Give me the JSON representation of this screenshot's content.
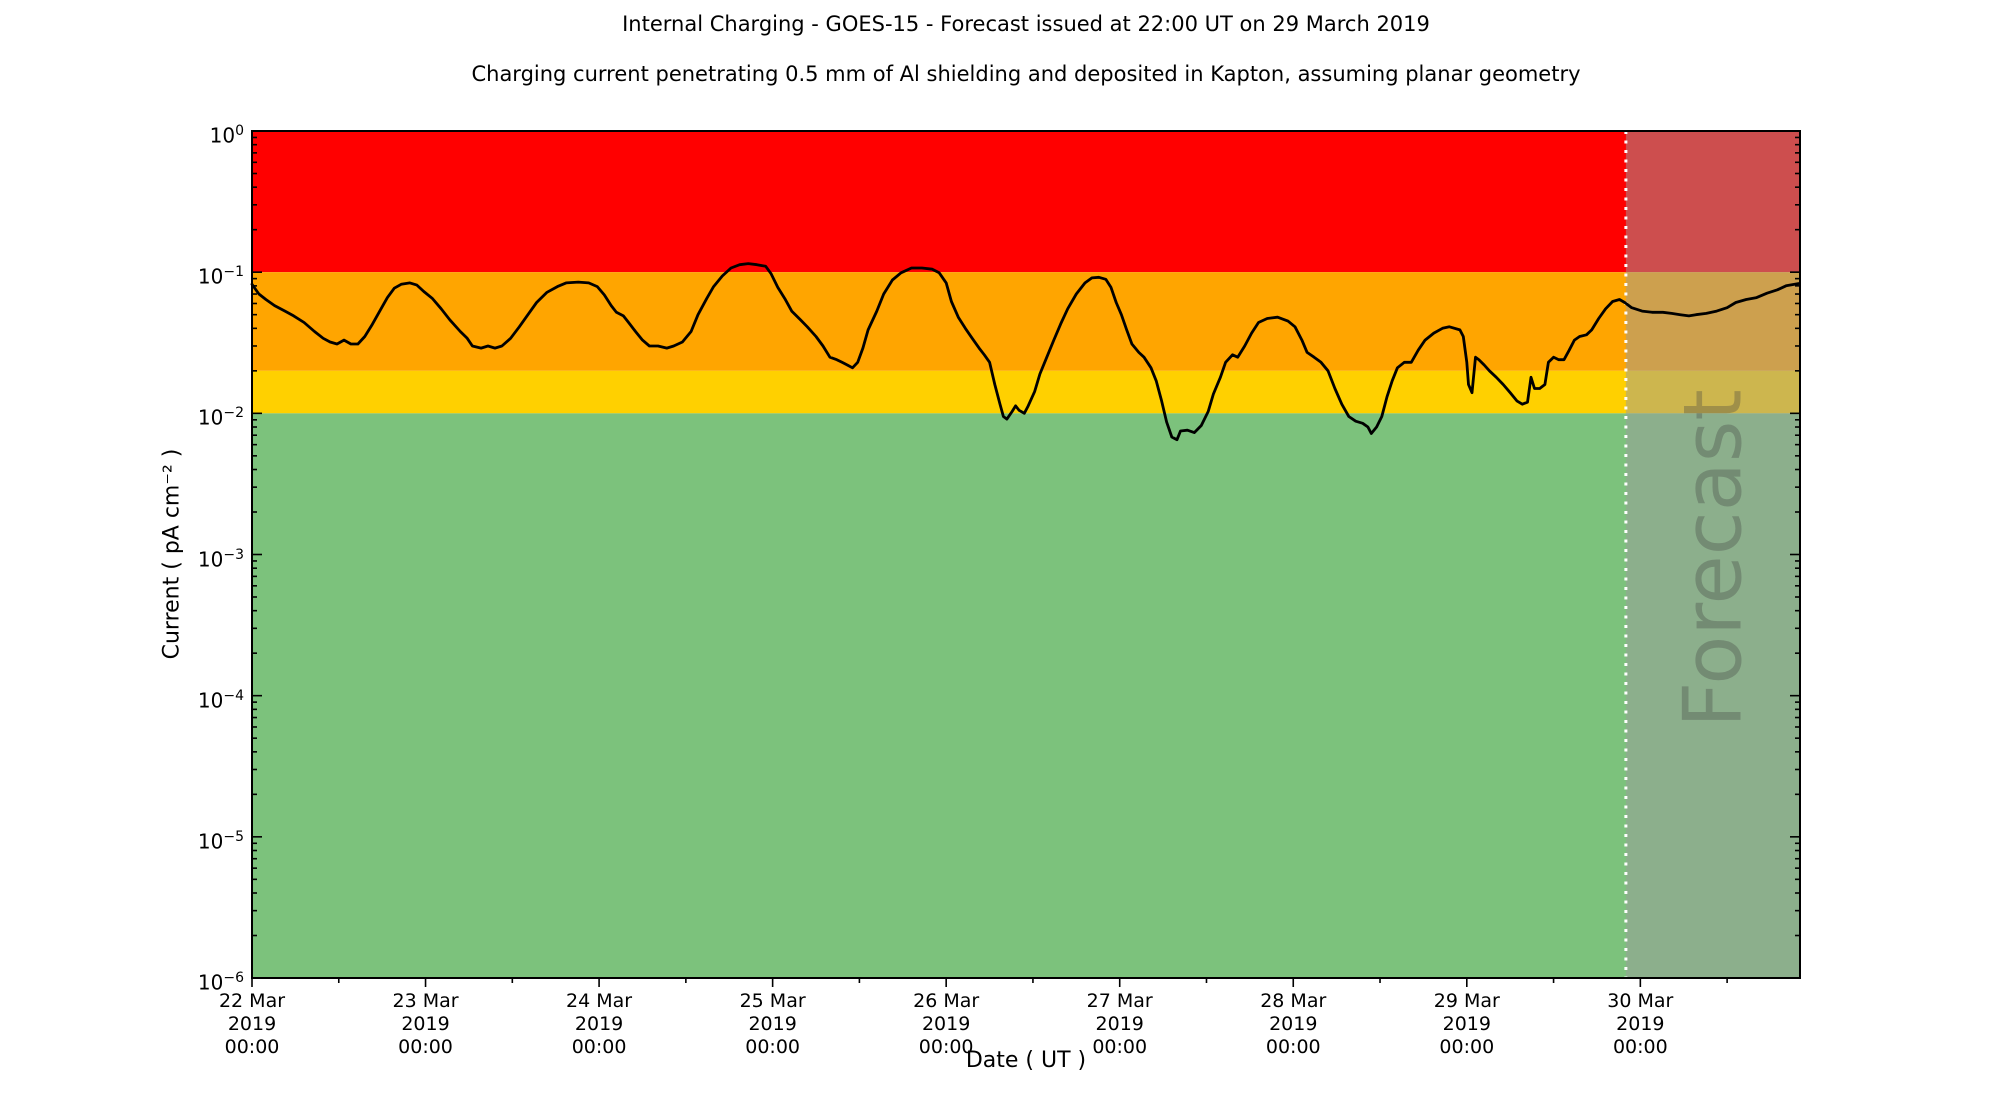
{
  "title": "Internal Charging - GOES-15 - Forecast issued at 22:00 UT on 29 March 2019",
  "subtitle": "Charging current penetrating 0.5 mm of Al shielding and deposited in Kapton, assuming planar geometry",
  "chart_data": {
    "type": "line",
    "title": "Internal Charging - GOES-15 - Forecast issued at 22:00 UT on 29 March 2019",
    "subtitle": "Charging current penetrating 0.5 mm of Al shielding and deposited in Kapton, assuming planar geometry",
    "xlabel": "Date ( UT )",
    "ylabel": "Current ( pA cm⁻² )",
    "y_scale": "log",
    "ylim": [
      1e-06,
      1
    ],
    "y_tick_exponents": [
      0,
      -1,
      -2,
      -3,
      -4,
      -5,
      -6
    ],
    "x_unit": "days since 22 Mar 2019 00:00 UT",
    "x_domain_days": [
      0,
      8.92
    ],
    "grid": false,
    "legend": "none",
    "x_ticks": [
      {
        "t": 0,
        "lines": [
          "22 Mar",
          "2019",
          "00:00"
        ]
      },
      {
        "t": 1,
        "lines": [
          "23 Mar",
          "2019",
          "00:00"
        ]
      },
      {
        "t": 2,
        "lines": [
          "24 Mar",
          "2019",
          "00:00"
        ]
      },
      {
        "t": 3,
        "lines": [
          "25 Mar",
          "2019",
          "00:00"
        ]
      },
      {
        "t": 4,
        "lines": [
          "26 Mar",
          "2019",
          "00:00"
        ]
      },
      {
        "t": 5,
        "lines": [
          "27 Mar",
          "2019",
          "00:00"
        ]
      },
      {
        "t": 6,
        "lines": [
          "28 Mar",
          "2019",
          "00:00"
        ]
      },
      {
        "t": 7,
        "lines": [
          "29 Mar",
          "2019",
          "00:00"
        ]
      },
      {
        "t": 8,
        "lines": [
          "30 Mar",
          "2019",
          "00:00"
        ]
      }
    ],
    "x_minor_tick_step_days": 0.5,
    "bands": [
      {
        "name": "alert-red",
        "v0": 0.1,
        "v1": 1.0,
        "color": "#FF0000"
      },
      {
        "name": "warning-orange",
        "v0": 0.02,
        "v1": 0.1,
        "color": "#FFA500"
      },
      {
        "name": "caution-yellow",
        "v0": 0.01,
        "v1": 0.02,
        "color": "#FFD000"
      },
      {
        "name": "quiet-green",
        "v0": 1e-06,
        "v1": 0.01,
        "color": "#7CC27C"
      }
    ],
    "forecast": {
      "start_day": 7.9167,
      "start_label": "29 Mar 2019 22:00 UT",
      "label": "Forecast",
      "overlay_color": "rgba(155,155,155,0.5)",
      "divider_color": "#FFFFFF",
      "divider_style": "dotted",
      "watermark_color": "#404040",
      "watermark_opacity": 0.32
    },
    "series": [
      {
        "name": "charging-current",
        "color": "#000000",
        "points": [
          [
            0.0,
            0.082
          ],
          [
            0.04,
            0.07
          ],
          [
            0.08,
            0.064
          ],
          [
            0.13,
            0.058
          ],
          [
            0.19,
            0.053
          ],
          [
            0.24,
            0.049
          ],
          [
            0.3,
            0.044
          ],
          [
            0.36,
            0.038
          ],
          [
            0.41,
            0.034
          ],
          [
            0.45,
            0.032
          ],
          [
            0.49,
            0.031
          ],
          [
            0.53,
            0.033
          ],
          [
            0.57,
            0.031
          ],
          [
            0.61,
            0.031
          ],
          [
            0.65,
            0.035
          ],
          [
            0.69,
            0.042
          ],
          [
            0.74,
            0.054
          ],
          [
            0.78,
            0.066
          ],
          [
            0.82,
            0.077
          ],
          [
            0.86,
            0.082
          ],
          [
            0.91,
            0.084
          ],
          [
            0.95,
            0.081
          ],
          [
            0.99,
            0.073
          ],
          [
            1.04,
            0.065
          ],
          [
            1.09,
            0.055
          ],
          [
            1.14,
            0.046
          ],
          [
            1.2,
            0.038
          ],
          [
            1.24,
            0.034
          ],
          [
            1.27,
            0.03
          ],
          [
            1.32,
            0.029
          ],
          [
            1.36,
            0.03
          ],
          [
            1.4,
            0.029
          ],
          [
            1.44,
            0.03
          ],
          [
            1.49,
            0.034
          ],
          [
            1.54,
            0.041
          ],
          [
            1.59,
            0.05
          ],
          [
            1.64,
            0.061
          ],
          [
            1.7,
            0.072
          ],
          [
            1.76,
            0.079
          ],
          [
            1.81,
            0.084
          ],
          [
            1.88,
            0.085
          ],
          [
            1.94,
            0.084
          ],
          [
            1.99,
            0.079
          ],
          [
            2.03,
            0.069
          ],
          [
            2.07,
            0.058
          ],
          [
            2.1,
            0.052
          ],
          [
            2.14,
            0.049
          ],
          [
            2.17,
            0.044
          ],
          [
            2.21,
            0.038
          ],
          [
            2.25,
            0.033
          ],
          [
            2.29,
            0.03
          ],
          [
            2.34,
            0.03
          ],
          [
            2.39,
            0.029
          ],
          [
            2.43,
            0.03
          ],
          [
            2.48,
            0.032
          ],
          [
            2.53,
            0.038
          ],
          [
            2.57,
            0.05
          ],
          [
            2.62,
            0.065
          ],
          [
            2.66,
            0.079
          ],
          [
            2.71,
            0.094
          ],
          [
            2.76,
            0.107
          ],
          [
            2.81,
            0.113
          ],
          [
            2.86,
            0.115
          ],
          [
            2.91,
            0.113
          ],
          [
            2.96,
            0.11
          ],
          [
            2.99,
            0.098
          ],
          [
            3.03,
            0.078
          ],
          [
            3.07,
            0.065
          ],
          [
            3.11,
            0.053
          ],
          [
            3.16,
            0.046
          ],
          [
            3.2,
            0.041
          ],
          [
            3.25,
            0.035
          ],
          [
            3.29,
            0.03
          ],
          [
            3.33,
            0.025
          ],
          [
            3.37,
            0.024
          ],
          [
            3.4,
            0.023
          ],
          [
            3.43,
            0.022
          ],
          [
            3.46,
            0.021
          ],
          [
            3.49,
            0.023
          ],
          [
            3.52,
            0.029
          ],
          [
            3.55,
            0.039
          ],
          [
            3.6,
            0.053
          ],
          [
            3.64,
            0.07
          ],
          [
            3.69,
            0.088
          ],
          [
            3.74,
            0.099
          ],
          [
            3.8,
            0.107
          ],
          [
            3.86,
            0.107
          ],
          [
            3.92,
            0.105
          ],
          [
            3.96,
            0.099
          ],
          [
            4.0,
            0.084
          ],
          [
            4.03,
            0.062
          ],
          [
            4.07,
            0.048
          ],
          [
            4.11,
            0.04
          ],
          [
            4.15,
            0.034
          ],
          [
            4.19,
            0.029
          ],
          [
            4.22,
            0.026
          ],
          [
            4.25,
            0.023
          ],
          [
            4.28,
            0.016
          ],
          [
            4.31,
            0.0116
          ],
          [
            4.33,
            0.0095
          ],
          [
            4.35,
            0.0091
          ],
          [
            4.38,
            0.0103
          ],
          [
            4.4,
            0.0113
          ],
          [
            4.42,
            0.0105
          ],
          [
            4.45,
            0.01
          ],
          [
            4.47,
            0.0111
          ],
          [
            4.51,
            0.0143
          ],
          [
            4.54,
            0.019
          ],
          [
            4.58,
            0.025
          ],
          [
            4.62,
            0.033
          ],
          [
            4.66,
            0.043
          ],
          [
            4.7,
            0.055
          ],
          [
            4.75,
            0.07
          ],
          [
            4.8,
            0.084
          ],
          [
            4.84,
            0.091
          ],
          [
            4.88,
            0.092
          ],
          [
            4.92,
            0.089
          ],
          [
            4.95,
            0.078
          ],
          [
            4.98,
            0.061
          ],
          [
            5.01,
            0.05
          ],
          [
            5.04,
            0.039
          ],
          [
            5.07,
            0.031
          ],
          [
            5.11,
            0.027
          ],
          [
            5.14,
            0.025
          ],
          [
            5.18,
            0.021
          ],
          [
            5.21,
            0.017
          ],
          [
            5.24,
            0.0124
          ],
          [
            5.27,
            0.0087
          ],
          [
            5.3,
            0.0068
          ],
          [
            5.33,
            0.0065
          ],
          [
            5.35,
            0.0075
          ],
          [
            5.39,
            0.0076
          ],
          [
            5.43,
            0.0073
          ],
          [
            5.47,
            0.0082
          ],
          [
            5.51,
            0.0103
          ],
          [
            5.54,
            0.0137
          ],
          [
            5.58,
            0.018
          ],
          [
            5.61,
            0.023
          ],
          [
            5.65,
            0.026
          ],
          [
            5.68,
            0.025
          ],
          [
            5.72,
            0.03
          ],
          [
            5.76,
            0.037
          ],
          [
            5.8,
            0.044
          ],
          [
            5.85,
            0.047
          ],
          [
            5.91,
            0.048
          ],
          [
            5.97,
            0.045
          ],
          [
            6.01,
            0.041
          ],
          [
            6.05,
            0.033
          ],
          [
            6.08,
            0.027
          ],
          [
            6.12,
            0.025
          ],
          [
            6.16,
            0.023
          ],
          [
            6.2,
            0.02
          ],
          [
            6.24,
            0.015
          ],
          [
            6.28,
            0.0116
          ],
          [
            6.32,
            0.0095
          ],
          [
            6.36,
            0.0088
          ],
          [
            6.4,
            0.0085
          ],
          [
            6.43,
            0.008
          ],
          [
            6.45,
            0.0072
          ],
          [
            6.48,
            0.008
          ],
          [
            6.51,
            0.0095
          ],
          [
            6.54,
            0.0131
          ],
          [
            6.57,
            0.017
          ],
          [
            6.6,
            0.021
          ],
          [
            6.64,
            0.023
          ],
          [
            6.68,
            0.023
          ],
          [
            6.72,
            0.028
          ],
          [
            6.76,
            0.033
          ],
          [
            6.81,
            0.037
          ],
          [
            6.86,
            0.04
          ],
          [
            6.9,
            0.041
          ],
          [
            6.96,
            0.039
          ],
          [
            6.98,
            0.035
          ],
          [
            7.0,
            0.023
          ],
          [
            7.01,
            0.016
          ],
          [
            7.03,
            0.014
          ],
          [
            7.05,
            0.025
          ],
          [
            7.07,
            0.024
          ],
          [
            7.1,
            0.022
          ],
          [
            7.13,
            0.02
          ],
          [
            7.17,
            0.018
          ],
          [
            7.21,
            0.016
          ],
          [
            7.25,
            0.014
          ],
          [
            7.29,
            0.0122
          ],
          [
            7.32,
            0.0116
          ],
          [
            7.35,
            0.012
          ],
          [
            7.37,
            0.018
          ],
          [
            7.39,
            0.015
          ],
          [
            7.42,
            0.015
          ],
          [
            7.45,
            0.016
          ],
          [
            7.47,
            0.023
          ],
          [
            7.5,
            0.025
          ],
          [
            7.53,
            0.024
          ],
          [
            7.56,
            0.024
          ],
          [
            7.59,
            0.028
          ],
          [
            7.62,
            0.033
          ],
          [
            7.65,
            0.035
          ],
          [
            7.69,
            0.036
          ],
          [
            7.72,
            0.039
          ],
          [
            7.76,
            0.047
          ],
          [
            7.8,
            0.055
          ],
          [
            7.84,
            0.062
          ],
          [
            7.88,
            0.064
          ],
          [
            7.91,
            0.061
          ],
          [
            7.95,
            0.056
          ],
          [
            8.01,
            0.053
          ],
          [
            8.07,
            0.052
          ],
          [
            8.13,
            0.052
          ],
          [
            8.18,
            0.051
          ],
          [
            8.23,
            0.05
          ],
          [
            8.28,
            0.049
          ],
          [
            8.32,
            0.05
          ],
          [
            8.38,
            0.051
          ],
          [
            8.44,
            0.053
          ],
          [
            8.5,
            0.056
          ],
          [
            8.55,
            0.061
          ],
          [
            8.61,
            0.064
          ],
          [
            8.67,
            0.066
          ],
          [
            8.73,
            0.071
          ],
          [
            8.79,
            0.075
          ],
          [
            8.84,
            0.08
          ],
          [
            8.91,
            0.083
          ]
        ]
      }
    ]
  }
}
